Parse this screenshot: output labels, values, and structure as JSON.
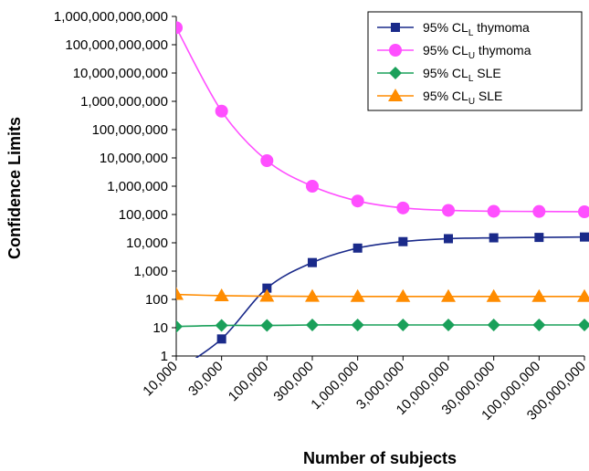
{
  "chart_data": {
    "type": "line",
    "title": "",
    "xlabel": "Number of subjects",
    "ylabel": "Confidence Limits",
    "y_scale": "log",
    "ylim": [
      1,
      1000000000000
    ],
    "y_ticks": [
      {
        "value": 1,
        "label": "1"
      },
      {
        "value": 10,
        "label": "10"
      },
      {
        "value": 100,
        "label": "100"
      },
      {
        "value": 1000,
        "label": "1,000"
      },
      {
        "value": 10000,
        "label": "10,000"
      },
      {
        "value": 100000,
        "label": "100,000"
      },
      {
        "value": 1000000,
        "label": "1,000,000"
      },
      {
        "value": 10000000,
        "label": "10,000,000"
      },
      {
        "value": 100000000,
        "label": "100,000,000"
      },
      {
        "value": 1000000000,
        "label": "1,000,000,000"
      },
      {
        "value": 10000000000,
        "label": "10,000,000,000"
      },
      {
        "value": 100000000000,
        "label": "100,000,000,000"
      },
      {
        "value": 1000000000000,
        "label": "1,000,000,000,000"
      }
    ],
    "categories": [
      "10,000",
      "30,000",
      "100,000",
      "300,000",
      "1,000,000",
      "3,000,000",
      "10,000,000",
      "30,000,000",
      "100,000,000",
      "300,000,000"
    ],
    "legend_position": "top-right",
    "grid": false,
    "series": [
      {
        "legend_main": "95% CL",
        "legend_sub": "L",
        "legend_suffix": " thymoma",
        "color": "#1a2a8a",
        "marker": "square",
        "values": [
          0.3,
          4,
          250,
          2000,
          6500,
          11000,
          14000,
          15000,
          15500,
          16000
        ]
      },
      {
        "legend_main": "95% CL",
        "legend_sub": "U",
        "legend_suffix": " thymoma",
        "color": "#ff4fff",
        "marker": "circle",
        "values": [
          400000000000,
          450000000,
          8000000,
          1000000,
          300000,
          170000,
          140000,
          130000,
          128000,
          125000
        ]
      },
      {
        "legend_main": "95% CL",
        "legend_sub": "L",
        "legend_suffix": " SLE",
        "color": "#1aa05a",
        "marker": "diamond",
        "values": [
          11,
          12,
          12,
          12.5,
          12.5,
          12.5,
          12.5,
          12.5,
          12.5,
          12.5
        ]
      },
      {
        "legend_main": "95% CL",
        "legend_sub": "U",
        "legend_suffix": " SLE",
        "color": "#ff8c00",
        "marker": "triangle",
        "values": [
          150,
          135,
          130,
          128,
          127,
          127,
          127,
          127,
          127,
          127
        ]
      }
    ]
  }
}
